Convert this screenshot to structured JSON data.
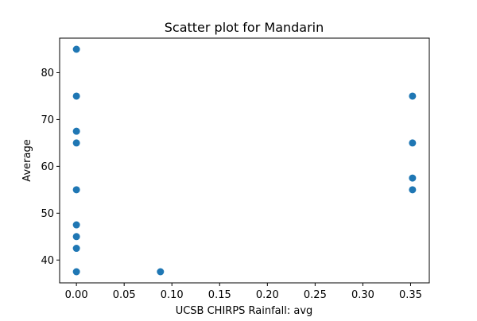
{
  "chart_data": {
    "type": "scatter",
    "title": "Scatter plot for Mandarin",
    "xlabel": "UCSB CHIRPS Rainfall: avg",
    "ylabel": "Average",
    "xlim": [
      -0.0176,
      0.3696
    ],
    "ylim": [
      35.125,
      87.375
    ],
    "xticks": [
      0.0,
      0.05,
      0.1,
      0.15,
      0.2,
      0.25,
      0.3,
      0.35
    ],
    "xtick_labels": [
      "0.00",
      "0.05",
      "0.10",
      "0.15",
      "0.20",
      "0.25",
      "0.30",
      "0.35"
    ],
    "yticks": [
      40,
      50,
      60,
      70,
      80
    ],
    "ytick_labels": [
      "40",
      "50",
      "60",
      "70",
      "80"
    ],
    "grid": false,
    "marker_color": "#1f77b4",
    "points": [
      {
        "x": 0.0,
        "y": 85.0
      },
      {
        "x": 0.0,
        "y": 75.0
      },
      {
        "x": 0.0,
        "y": 67.5
      },
      {
        "x": 0.0,
        "y": 65.0
      },
      {
        "x": 0.0,
        "y": 55.0
      },
      {
        "x": 0.0,
        "y": 47.5
      },
      {
        "x": 0.0,
        "y": 45.0
      },
      {
        "x": 0.0,
        "y": 42.5
      },
      {
        "x": 0.0,
        "y": 37.5
      },
      {
        "x": 0.088,
        "y": 37.5
      },
      {
        "x": 0.352,
        "y": 75.0
      },
      {
        "x": 0.352,
        "y": 65.0
      },
      {
        "x": 0.352,
        "y": 57.5
      },
      {
        "x": 0.352,
        "y": 55.0
      }
    ]
  }
}
